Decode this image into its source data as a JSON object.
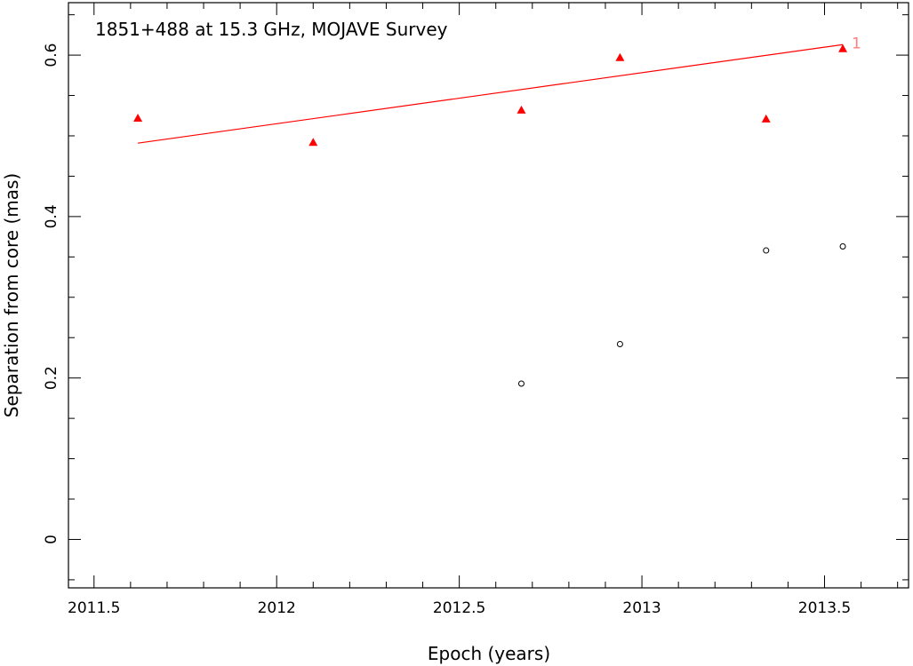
{
  "chart_data": {
    "type": "scatter",
    "title": "1851+488 at 15.3 GHz, MOJAVE Survey",
    "xlabel": "Epoch (years)",
    "ylabel": "Separation from core (mas)",
    "xlim": [
      2011.43,
      2013.73
    ],
    "ylim": [
      -0.06,
      0.665
    ],
    "xticks": [
      2011.5,
      2012,
      2012.5,
      2013,
      2013.5
    ],
    "xtick_labels": [
      "2011.5",
      "2012",
      "2012.5",
      "2013",
      "2013.5"
    ],
    "xminor_step": 0.1,
    "yticks": [
      0,
      0.2,
      0.4,
      0.6
    ],
    "ytick_labels": [
      "0",
      "0.2",
      "0.4",
      "0.6"
    ],
    "yminor_step": 0.05,
    "grid": false,
    "series": [
      {
        "marker": "triangle",
        "color": "#ff0000",
        "points": [
          {
            "x": 2011.62,
            "y": 0.522
          },
          {
            "x": 2012.1,
            "y": 0.492
          },
          {
            "x": 2012.67,
            "y": 0.532
          },
          {
            "x": 2012.94,
            "y": 0.597
          },
          {
            "x": 2013.34,
            "y": 0.521
          },
          {
            "x": 2013.55,
            "y": 0.608
          }
        ]
      },
      {
        "marker": "open-circle",
        "color": "#000000",
        "points": [
          {
            "x": 2012.67,
            "y": 0.193
          },
          {
            "x": 2012.94,
            "y": 0.242
          },
          {
            "x": 2013.34,
            "y": 0.358
          },
          {
            "x": 2013.55,
            "y": 0.363
          }
        ]
      }
    ],
    "fit_line": {
      "color": "#ff0000",
      "start": {
        "x": 2011.62,
        "y": 0.491
      },
      "end": {
        "x": 2013.55,
        "y": 0.613
      },
      "label": "1",
      "label_color": "#ff7f7f"
    }
  }
}
